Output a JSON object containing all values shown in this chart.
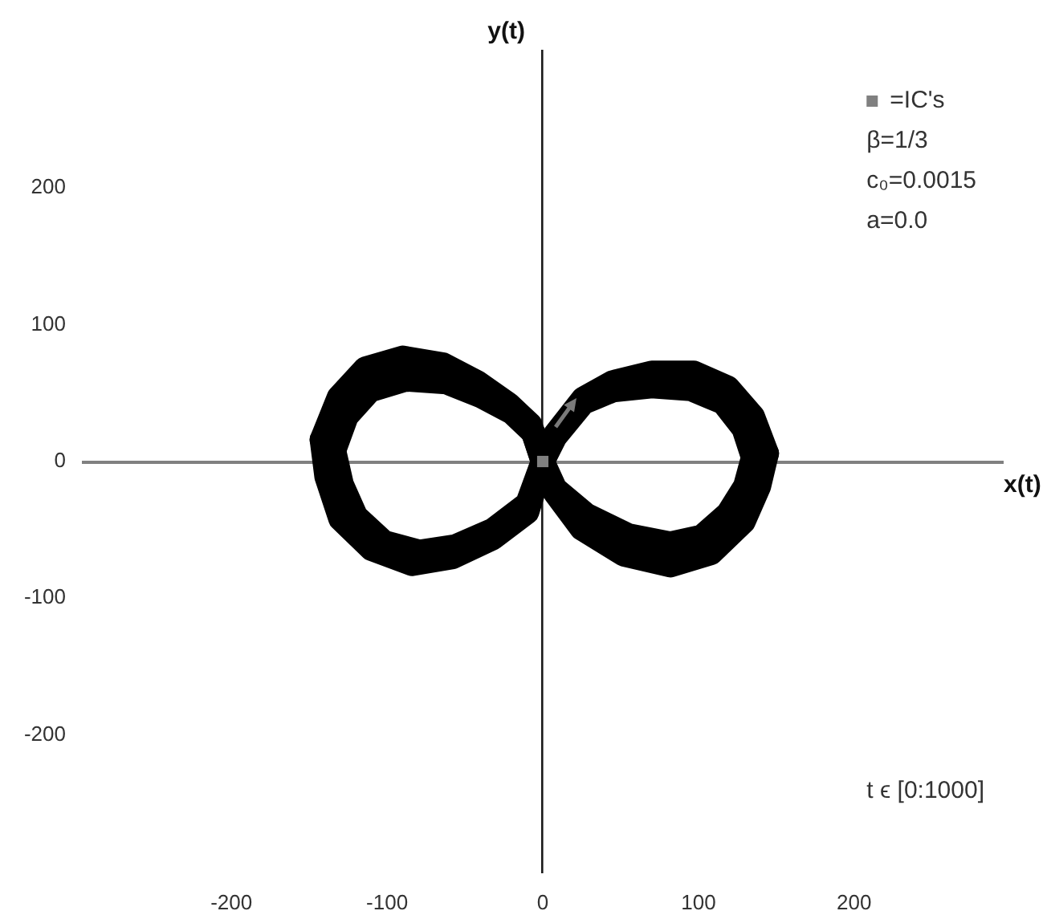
{
  "chart_data": {
    "type": "line",
    "xlabel": "x(t)",
    "ylabel": "y(t)",
    "xlim": [
      -295,
      295
    ],
    "ylim": [
      -300,
      300
    ],
    "xticks": [
      -200,
      -100,
      0,
      100,
      200
    ],
    "yticks": [
      -200,
      -100,
      0,
      100,
      200
    ],
    "legend": "top right",
    "annotations": [
      "β=1/3",
      "c₀=0.0015",
      "a=0.0",
      "t ϵ [0:1000]"
    ],
    "series": [
      {
        "color": "#000000",
        "x": [
          -134,
          -126,
          -111,
          -88,
          -62,
          -40,
          -20,
          -6,
          0,
          8,
          26,
          45,
          70,
          95,
          116,
          129,
          135
        ],
        "values": [
          8,
          33,
          52,
          60,
          58,
          48,
          36,
          21,
          0,
          18,
          43,
          52,
          55,
          53,
          43,
          24,
          3
        ]
      },
      {
        "color": "#000000",
        "x": [
          -134,
          -129,
          -120,
          -102,
          -79,
          -56,
          -32,
          -10,
          0,
          8,
          28,
          55,
          82,
          102,
          119,
          130,
          135
        ],
        "values": [
          8,
          -17,
          -40,
          -59,
          -66,
          -62,
          -50,
          -31,
          0,
          -20,
          -39,
          -54,
          -60,
          -55,
          -38,
          -18,
          3
        ]
      },
      {
        "color": "#000000",
        "x": [
          -142,
          -131,
          -114,
          -90,
          -64,
          -42,
          -22,
          -8,
          0,
          8,
          26,
          45,
          70,
          97,
          119,
          135,
          144
        ],
        "values": [
          16,
          47,
          68,
          76,
          71,
          58,
          42,
          27,
          0,
          20,
          46,
          58,
          65,
          65,
          54,
          33,
          6
        ]
      },
      {
        "color": "#000000",
        "x": [
          -142,
          -139,
          -130,
          -110,
          -84,
          -58,
          -32,
          -10,
          0,
          8,
          25,
          52,
          82,
          108,
          129,
          139,
          144
        ],
        "values": [
          16,
          -11,
          -42,
          -64,
          -75,
          -70,
          -56,
          -37,
          0,
          -23,
          -49,
          -68,
          -76,
          -67,
          -44,
          -18,
          6
        ]
      },
      {
        "type": "scatter",
        "name": "=IC's",
        "color": "#808080",
        "marker": "square",
        "x": [
          0
        ],
        "values": [
          0
        ]
      }
    ]
  }
}
